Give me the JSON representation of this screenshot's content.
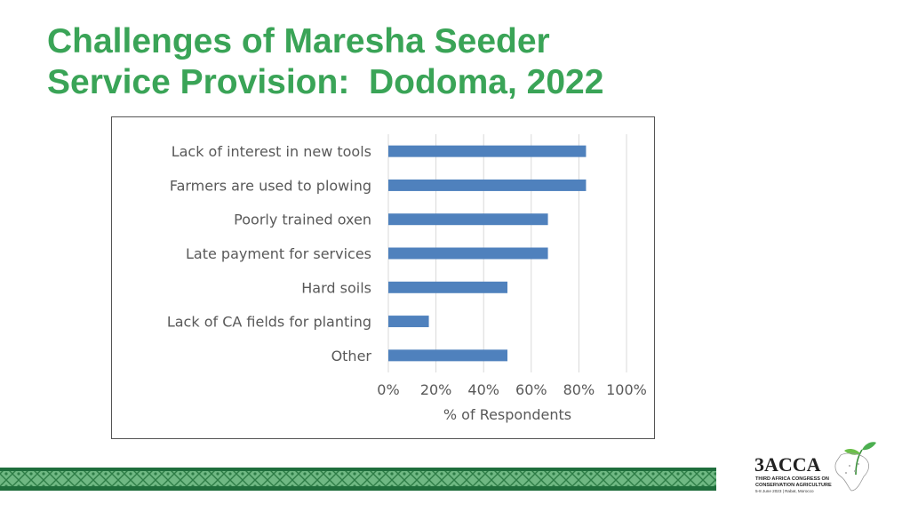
{
  "slide": {
    "title_line1": "Challenges of Maresha Seeder",
    "title_line2": "Service Provision:  Dodoma, 2022"
  },
  "chart_data": {
    "type": "bar",
    "orientation": "horizontal",
    "categories": [
      "Lack of interest in new tools",
      "Farmers are used to plowing",
      "Poorly trained oxen",
      "Late payment for services",
      "Hard soils",
      "Lack of CA fields for planting",
      "Other"
    ],
    "values": [
      83,
      83,
      67,
      67,
      50,
      17,
      50
    ],
    "xlabel": "% of Respondents",
    "ylabel": "",
    "xlim": [
      0,
      100
    ],
    "xticks": [
      "0%",
      "20%",
      "40%",
      "60%",
      "80%",
      "100%"
    ],
    "grid": true,
    "bar_color": "#4f81bd",
    "grid_color": "#d9d9d9"
  },
  "logo": {
    "name": "3ACCA",
    "line1": "THIRD AFRICA CONGRESS ON",
    "line2": "CONSERVATION AGRICULTURE",
    "line3": "5-8 June 2023 | Rabat, Morocco"
  },
  "colors": {
    "title": "#3aa457",
    "band_dark": "#1f6e3c",
    "band_light": "#7cc38f"
  }
}
